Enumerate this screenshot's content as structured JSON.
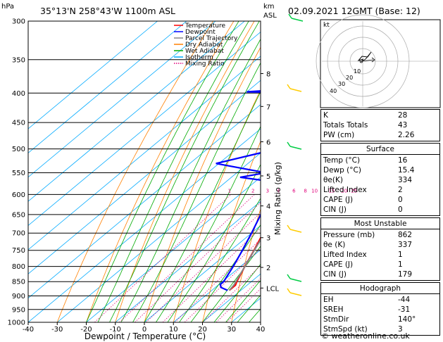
{
  "header": {
    "location": "35°13'N 258°43'W 1100m ASL",
    "datetime": "02.09.2021 12GMT (Base: 12)",
    "hpa_label": "hPa",
    "km_label": "km",
    "asl_label": "ASL"
  },
  "chart_data": {
    "type": "line",
    "title": "",
    "xlabel": "Dewpoint / Temperature (°C)",
    "ylabel": "Mixing Ratio (g/kg)",
    "xlim": [
      -40,
      40
    ],
    "ylim": [
      1000,
      300
    ],
    "y_scale": "log",
    "x_ticks": [
      -40,
      -30,
      -20,
      -10,
      0,
      10,
      20,
      30,
      40
    ],
    "y_ticks": [
      300,
      350,
      400,
      450,
      500,
      550,
      600,
      650,
      700,
      750,
      800,
      850,
      900,
      950,
      1000
    ],
    "km_ticks": [
      {
        "label": "8",
        "p": 370
      },
      {
        "label": "7",
        "p": 422
      },
      {
        "label": "6",
        "p": 486
      },
      {
        "label": "5",
        "p": 557
      },
      {
        "label": "4",
        "p": 628
      },
      {
        "label": "3",
        "p": 713
      },
      {
        "label": "2",
        "p": 803
      },
      {
        "label": "LCL",
        "p": 872
      }
    ],
    "mixing_ratio_labels": [
      "1",
      "2",
      "3",
      "4",
      "6",
      "8",
      "10",
      "15",
      "20",
      "25"
    ],
    "mixing_ratio_values": [
      1,
      2,
      3,
      4,
      6,
      8,
      10,
      15,
      20,
      25
    ],
    "legend": [
      {
        "name": "Temperature",
        "color": "#ff0000",
        "style": "solid"
      },
      {
        "name": "Dewpoint",
        "color": "#0000ff",
        "style": "solid"
      },
      {
        "name": "Parcel Trajectory",
        "color": "#888888",
        "style": "solid"
      },
      {
        "name": "Dry Adiabat",
        "color": "#ff8000",
        "style": "solid"
      },
      {
        "name": "Wet Adiabat",
        "color": "#00aa00",
        "style": "solid"
      },
      {
        "name": "Isotherm",
        "color": "#00aaff",
        "style": "solid"
      },
      {
        "name": "Mixing Ratio",
        "color": "#e0007a",
        "style": "dotted"
      }
    ],
    "series": [
      {
        "name": "Temperature",
        "color": "#ff0000",
        "points": [
          {
            "p": 880,
            "t": 16
          },
          {
            "p": 862,
            "t": 16
          },
          {
            "p": 850,
            "t": 15
          },
          {
            "p": 800,
            "t": 11.5
          },
          {
            "p": 750,
            "t": 8
          },
          {
            "p": 700,
            "t": 4
          },
          {
            "p": 650,
            "t": -0.5
          },
          {
            "p": 600,
            "t": -5
          },
          {
            "p": 575,
            "t": -8.5
          },
          {
            "p": 550,
            "t": -9.5
          },
          {
            "p": 500,
            "t": -14
          },
          {
            "p": 450,
            "t": -19.5
          },
          {
            "p": 400,
            "t": -25.5
          },
          {
            "p": 350,
            "t": -33
          },
          {
            "p": 300,
            "t": -42
          }
        ]
      },
      {
        "name": "Dewpoint",
        "color": "#0000ff",
        "points": [
          {
            "p": 880,
            "t": 15.4
          },
          {
            "p": 870,
            "t": 12
          },
          {
            "p": 860,
            "t": 10.5
          },
          {
            "p": 850,
            "t": 10.5
          },
          {
            "p": 800,
            "t": 7.5
          },
          {
            "p": 750,
            "t": 4
          },
          {
            "p": 700,
            "t": 0
          },
          {
            "p": 650,
            "t": -4.5
          },
          {
            "p": 610,
            "t": -7
          },
          {
            "p": 600,
            "t": -11
          },
          {
            "p": 575,
            "t": -16
          },
          {
            "p": 570,
            "t": -14
          },
          {
            "p": 560,
            "t": -27
          },
          {
            "p": 550,
            "t": -20
          },
          {
            "p": 530,
            "t": -41
          },
          {
            "p": 500,
            "t": -26
          },
          {
            "p": 480,
            "t": -27
          },
          {
            "p": 450,
            "t": -42
          },
          {
            "p": 420,
            "t": -28
          },
          {
            "p": 400,
            "t": -31
          },
          {
            "p": 398,
            "t": -60
          },
          {
            "p": 385,
            "t": -19
          },
          {
            "p": 350,
            "t": -22
          },
          {
            "p": 300,
            "t": -44
          }
        ]
      },
      {
        "name": "Parcel Trajectory",
        "color": "#888888",
        "points": [
          {
            "p": 880,
            "t": 16
          },
          {
            "p": 862,
            "t": 15.4
          },
          {
            "p": 800,
            "t": 11.5
          },
          {
            "p": 700,
            "t": 4.5
          },
          {
            "p": 600,
            "t": -3.5
          },
          {
            "p": 500,
            "t": -13
          },
          {
            "p": 400,
            "t": -26
          },
          {
            "p": 300,
            "t": -45
          }
        ]
      }
    ]
  },
  "hodograph": {
    "unit_label": "kt",
    "ring_labels": [
      "10",
      "20",
      "30",
      "40"
    ]
  },
  "indices": [
    {
      "label": "K",
      "value": "28"
    },
    {
      "label": "Totals Totals",
      "value": "43"
    },
    {
      "label": "PW (cm)",
      "value": "2.26"
    }
  ],
  "surface": {
    "title": "Surface",
    "rows": [
      {
        "label": "Temp (°C)",
        "value": "16"
      },
      {
        "label": "Dewp (°C)",
        "value": "15.4"
      },
      {
        "label": "θe(K)",
        "value": "334"
      },
      {
        "label": "Lifted Index",
        "value": "2"
      },
      {
        "label": "CAPE (J)",
        "value": "0"
      },
      {
        "label": "CIN (J)",
        "value": "0"
      }
    ]
  },
  "most_unstable": {
    "title": "Most Unstable",
    "rows": [
      {
        "label": "Pressure (mb)",
        "value": "862"
      },
      {
        "label": "θe (K)",
        "value": "337"
      },
      {
        "label": "Lifted Index",
        "value": "1"
      },
      {
        "label": "CAPE (J)",
        "value": "1"
      },
      {
        "label": "CIN (J)",
        "value": "179"
      }
    ]
  },
  "hodograph_stats": {
    "title": "Hodograph",
    "rows": [
      {
        "label": "EH",
        "value": "-44"
      },
      {
        "label": "SREH",
        "value": "-31"
      },
      {
        "label": "StmDir",
        "value": "140°"
      },
      {
        "label": "StmSpd (kt)",
        "value": "3"
      }
    ]
  },
  "footer": "© weatheronline.co.uk"
}
